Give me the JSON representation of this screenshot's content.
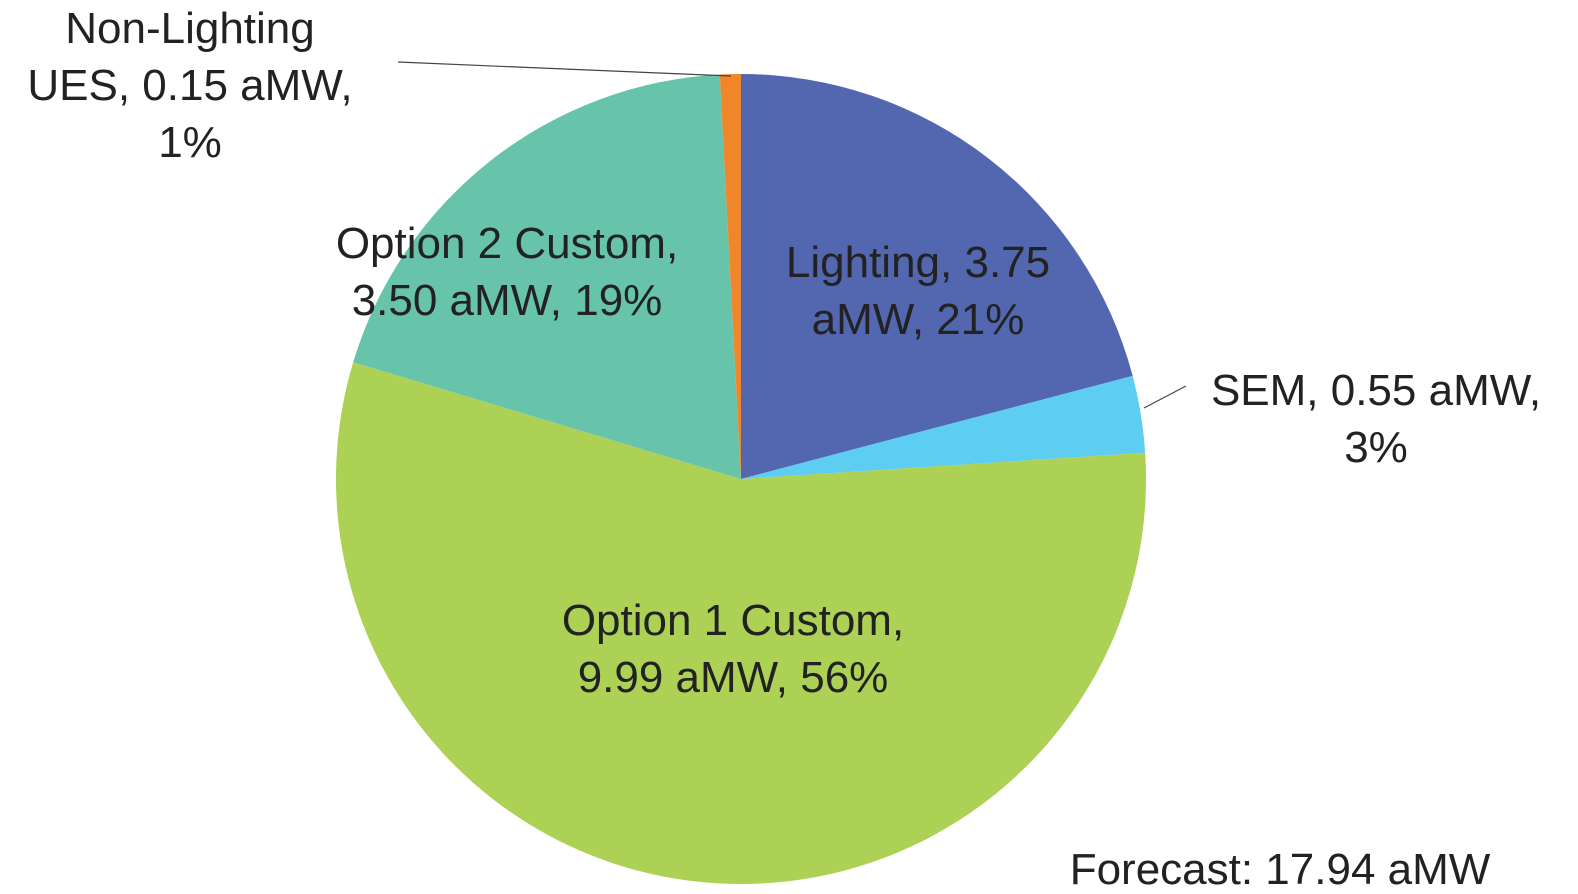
{
  "chart_data": {
    "type": "pie",
    "values": [
      3.75,
      0.55,
      9.99,
      3.5,
      0.15
    ],
    "value_labels": [
      [
        "Lighting, 3.75",
        "aMW, 21%"
      ],
      [
        "SEM, 0.55 aMW,",
        "3%"
      ],
      [
        "Option 1 Custom,",
        "9.99 aMW, 56%"
      ],
      [
        "Option 2 Custom,",
        "3.50 aMW, 19%"
      ],
      [
        "Non-Lighting",
        "UES, 0.15 aMW,",
        "1%"
      ]
    ],
    "colors": [
      "#5366b0",
      "#5ecdf2",
      "#acd155",
      "#67c4ab",
      "#f0862a"
    ],
    "annotation": "Forecast: 17.94 aMW"
  }
}
